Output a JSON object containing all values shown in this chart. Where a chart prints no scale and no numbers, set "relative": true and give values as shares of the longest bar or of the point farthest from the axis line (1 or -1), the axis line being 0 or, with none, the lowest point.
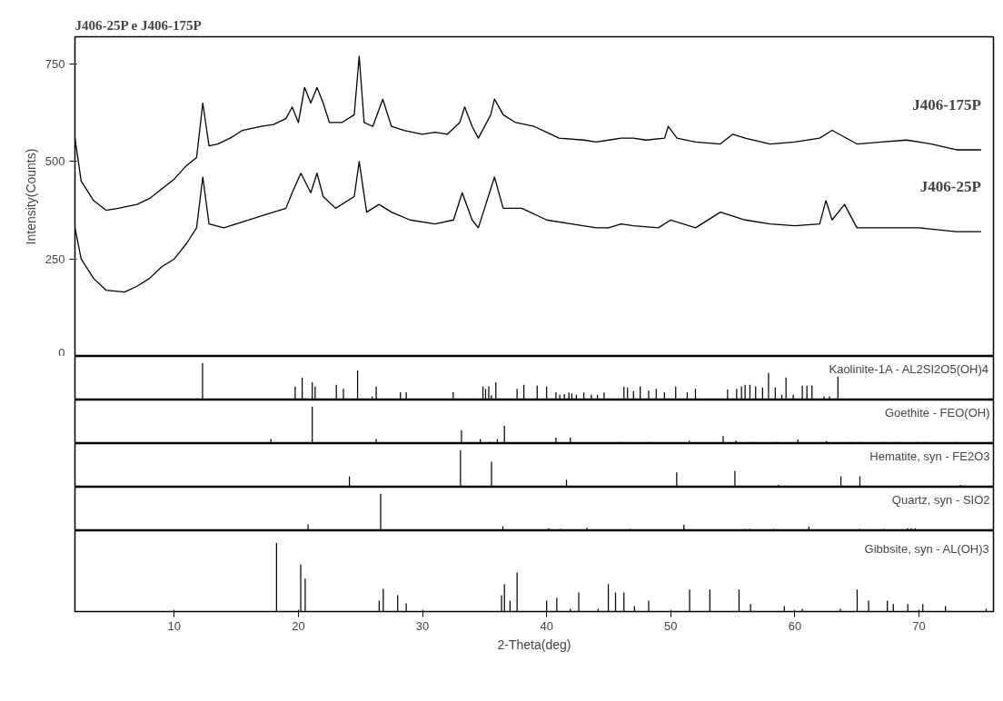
{
  "chart_data": [
    {
      "type": "line",
      "title": "J406-25P e J406-175P",
      "ylabel": "Intensity(Counts)",
      "xlim": [
        2,
        76
      ],
      "ylim": [
        0,
        820
      ],
      "yticks": [
        0,
        250,
        500,
        750
      ],
      "tick_labels": "y",
      "series": [
        {
          "name": "J406-175P",
          "color": "#000000",
          "x": [
            2,
            2.5,
            3.5,
            4.5,
            5.5,
            7,
            8,
            9,
            10,
            11,
            11.8,
            12.3,
            12.8,
            13.5,
            14.5,
            15.5,
            17,
            18,
            19,
            19.5,
            20,
            20.5,
            21,
            21.5,
            22,
            22.5,
            23.5,
            24.5,
            24.9,
            25.3,
            26,
            26.8,
            27.5,
            28.5,
            30,
            31,
            32,
            33,
            33.4,
            34,
            34.5,
            35.5,
            35.8,
            36.5,
            37.5,
            39,
            40,
            41,
            43,
            44,
            45,
            46,
            47,
            48,
            49.5,
            49.8,
            50.5,
            52,
            54,
            55,
            56,
            58,
            60,
            62,
            63,
            65,
            67,
            69,
            71,
            73,
            75
          ],
          "values": [
            560,
            450,
            400,
            375,
            380,
            390,
            405,
            430,
            455,
            490,
            510,
            650,
            540,
            545,
            560,
            580,
            590,
            595,
            610,
            640,
            600,
            690,
            650,
            690,
            650,
            600,
            600,
            620,
            770,
            600,
            590,
            660,
            590,
            580,
            570,
            575,
            570,
            600,
            640,
            590,
            560,
            620,
            660,
            620,
            600,
            590,
            575,
            560,
            555,
            550,
            555,
            560,
            560,
            555,
            560,
            590,
            560,
            550,
            545,
            570,
            560,
            545,
            550,
            560,
            580,
            545,
            550,
            555,
            545,
            530,
            530
          ]
        },
        {
          "name": "J406-25P",
          "color": "#000000",
          "x": [
            2,
            2.5,
            3.5,
            4.5,
            6,
            7,
            8,
            9,
            10,
            11,
            11.8,
            12.3,
            12.8,
            14,
            15.5,
            17,
            18,
            19,
            19.5,
            20.2,
            21,
            21.5,
            22,
            23,
            24.5,
            24.9,
            25.5,
            26.5,
            27.5,
            29,
            31,
            32.5,
            33.2,
            34,
            34.5,
            35.8,
            36.5,
            38,
            40,
            42,
            44,
            45,
            46,
            47,
            49,
            50,
            52,
            54,
            56,
            58,
            60,
            62,
            62.5,
            63,
            64,
            65,
            67,
            70,
            73,
            75
          ],
          "values": [
            330,
            250,
            200,
            170,
            165,
            180,
            200,
            230,
            250,
            290,
            330,
            460,
            340,
            330,
            345,
            360,
            370,
            380,
            420,
            470,
            420,
            470,
            410,
            380,
            410,
            500,
            370,
            390,
            370,
            350,
            340,
            350,
            420,
            350,
            330,
            460,
            380,
            380,
            350,
            340,
            330,
            330,
            340,
            335,
            330,
            350,
            330,
            370,
            350,
            340,
            335,
            340,
            400,
            350,
            390,
            330,
            330,
            330,
            320,
            320
          ]
        }
      ]
    },
    {
      "type": "bar",
      "title": "Kaolinite-1A - AL2SI2O5(OH)4",
      "relative": true,
      "xlim": [
        2,
        76
      ],
      "tick_labels": false,
      "color": "#000000",
      "x": [
        12.28,
        19.74,
        20.31,
        21.12,
        21.35,
        23.06,
        23.63,
        24.77,
        25.94,
        26.27,
        28.22,
        28.69,
        32.47,
        34.87,
        35.08,
        35.34,
        35.55,
        35.91,
        37.62,
        38.17,
        39.24,
        40.0,
        40.75,
        41.06,
        41.43,
        41.8,
        42.03,
        42.4,
        43.0,
        43.6,
        44.1,
        44.63,
        46.23,
        46.52,
        47.0,
        47.54,
        48.22,
        48.83,
        49.49,
        50.4,
        51.33,
        51.99,
        54.58,
        55.31,
        55.7,
        55.99,
        56.38,
        56.84,
        57.4,
        57.88,
        58.42,
        58.95,
        59.29,
        59.87,
        60.6,
        60.97,
        61.38,
        62.35,
        62.79,
        63.47
      ],
      "values": [
        1.0,
        0.36,
        0.61,
        0.48,
        0.36,
        0.41,
        0.3,
        0.8,
        0.09,
        0.36,
        0.21,
        0.21,
        0.21,
        0.37,
        0.3,
        0.37,
        0.13,
        0.48,
        0.3,
        0.41,
        0.39,
        0.36,
        0.21,
        0.14,
        0.16,
        0.2,
        0.18,
        0.14,
        0.2,
        0.14,
        0.14,
        0.2,
        0.36,
        0.34,
        0.24,
        0.37,
        0.26,
        0.3,
        0.21,
        0.36,
        0.21,
        0.3,
        0.28,
        0.3,
        0.37,
        0.41,
        0.41,
        0.37,
        0.34,
        0.73,
        0.34,
        0.14,
        0.61,
        0.14,
        0.39,
        0.39,
        0.39,
        0.1,
        0.1,
        0.63
      ]
    },
    {
      "type": "bar",
      "title": "Goethite - FEO(OH)",
      "relative": true,
      "xlim": [
        2,
        76
      ],
      "tick_labels": false,
      "color": "#000000",
      "x": [
        17.79,
        21.12,
        26.27,
        33.14,
        34.66,
        35.44,
        36.03,
        36.6,
        40.75,
        41.91,
        45.92,
        48.22,
        51.5,
        54.22,
        55.26,
        56.48,
        58.56,
        60.24,
        62.54,
        64.49,
        65.21,
        67.03,
        68.37,
        69.83,
        70.43,
        72.98
      ],
      "values": [
        0.12,
        1.0,
        0.12,
        0.36,
        0.12,
        0.05,
        0.12,
        0.48,
        0.16,
        0.16,
        0.04,
        0.04,
        0.08,
        0.2,
        0.08,
        0.04,
        0.04,
        0.11,
        0.07,
        0.04,
        0.04,
        0.04,
        0.04,
        0.04,
        0.04,
        0.04
      ]
    },
    {
      "type": "bar",
      "title": "Hematite, syn - FE2O3",
      "relative": true,
      "xlim": [
        2,
        76
      ],
      "tick_labels": false,
      "color": "#000000",
      "x": [
        24.11,
        33.06,
        35.56,
        41.6,
        50.48,
        55.17,
        58.66,
        63.71,
        65.24,
        73.34,
        73.66
      ],
      "values": [
        0.29,
        1.0,
        0.69,
        0.2,
        0.4,
        0.44,
        0.06,
        0.29,
        0.29,
        0.06,
        0.04
      ]
    },
    {
      "type": "bar",
      "title": "Quartz, syn - SIO2",
      "relative": true,
      "xlim": [
        2,
        76
      ],
      "tick_labels": false,
      "color": "#000000",
      "x": [
        20.78,
        26.63,
        36.48,
        40.17,
        41.14,
        43.25,
        46.72,
        51.06,
        51.62,
        55.99,
        56.35,
        58.3,
        61.13,
        65.21,
        67.16,
        69.1,
        69.39,
        69.7,
        74.92
      ],
      "values": [
        0.17,
        1.0,
        0.12,
        0.07,
        0.05,
        0.08,
        0.05,
        0.16,
        0.03,
        0.05,
        0.05,
        0.05,
        0.11,
        0.05,
        0.05,
        0.07,
        0.07,
        0.07,
        0.03
      ]
    },
    {
      "type": "bar",
      "title": "Gibbsite, syn - AL(OH)3",
      "relative": true,
      "xlim": [
        2,
        76
      ],
      "xticks": [
        10,
        20,
        30,
        40,
        50,
        60,
        70
      ],
      "xlabel": "2-Theta(deg)",
      "tick_labels": "x",
      "color": "#000000",
      "x": [
        18.24,
        20.19,
        20.55,
        26.51,
        26.84,
        28.0,
        28.69,
        36.37,
        36.6,
        37.05,
        37.62,
        40.0,
        40.82,
        41.91,
        42.59,
        44.15,
        44.97,
        45.55,
        46.23,
        47.08,
        48.22,
        51.52,
        53.15,
        55.5,
        56.43,
        59.15,
        60.6,
        63.66,
        65.02,
        65.94,
        67.45,
        67.93,
        69.1,
        70.31,
        72.13,
        75.41
      ],
      "values": [
        1.0,
        0.69,
        0.48,
        0.16,
        0.33,
        0.24,
        0.12,
        0.24,
        0.4,
        0.16,
        0.57,
        0.16,
        0.2,
        0.04,
        0.28,
        0.04,
        0.4,
        0.28,
        0.28,
        0.08,
        0.16,
        0.32,
        0.32,
        0.32,
        0.11,
        0.08,
        0.04,
        0.04,
        0.32,
        0.16,
        0.16,
        0.11,
        0.11,
        0.11,
        0.08,
        0.04
      ]
    }
  ]
}
